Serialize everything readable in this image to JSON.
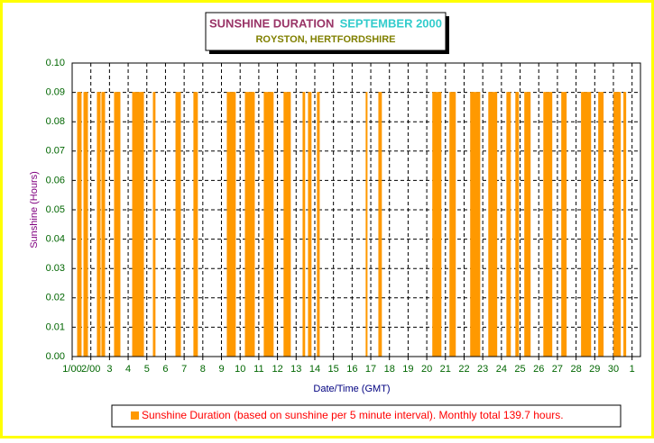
{
  "chart_data": {
    "type": "area",
    "title": "SUNSHINE DURATION",
    "title_date": "SEPTEMBER 2000",
    "subtitle": "ROYSTON, HERTFORDSHIRE",
    "y_label": "Sunshine (Hours)",
    "x_label": "Date/Time (GMT)",
    "xlim": [
      1,
      31.45
    ],
    "ylim": [
      0,
      0.1
    ],
    "xticks": [
      {
        "value": 1,
        "label": "1/00"
      },
      {
        "value": 2,
        "label": "2/00"
      },
      3,
      4,
      5,
      6,
      7,
      8,
      9,
      10,
      11,
      12,
      13,
      14,
      15,
      16,
      17,
      18,
      19,
      20,
      21,
      22,
      23,
      24,
      25,
      26,
      27,
      28,
      29,
      30,
      {
        "value": 31,
        "label": "1"
      }
    ],
    "yticks": [
      {
        "value": 0,
        "label": "0.00"
      },
      {
        "value": 0.01,
        "label": "0.01"
      },
      {
        "value": 0.02,
        "label": "0.02"
      },
      {
        "value": 0.03,
        "label": "0.03"
      },
      {
        "value": 0.04,
        "label": "0.04"
      },
      {
        "value": 0.05,
        "label": "0.05"
      },
      {
        "value": 0.06,
        "label": "0.06"
      },
      {
        "value": 0.07,
        "label": "0.07"
      },
      {
        "value": 0.08,
        "label": "0.08"
      },
      {
        "value": 0.09,
        "label": "0.09"
      },
      {
        "value": 0.1,
        "label": "0.10"
      }
    ],
    "grid": true,
    "series": [
      {
        "name": "Sunshine Duration (based on sunshine per 5 minute interval). Monthly total 139.7 hours.",
        "color": "#ff9900",
        "x": [
          1.29,
          1.29,
          1.48,
          1.48,
          1.63,
          1.63,
          1.82,
          1.82,
          2.35,
          2.35,
          2.5,
          2.5,
          2.59,
          2.59,
          2.74,
          2.74,
          3.27,
          3.27,
          3.56,
          3.56,
          4.24,
          4.24,
          4.82,
          4.82,
          5.35,
          5.35,
          5.44,
          5.44,
          6.56,
          6.56,
          6.8,
          6.8,
          7.52,
          7.52,
          7.71,
          7.71,
          9.31,
          9.31,
          9.74,
          9.74,
          10.28,
          10.28,
          10.76,
          10.76,
          11.29,
          11.29,
          11.77,
          11.77,
          12.35,
          12.35,
          12.69,
          12.69,
          13.37,
          13.37,
          13.46,
          13.46,
          13.66,
          13.66,
          13.8,
          13.8,
          14.14,
          14.14,
          14.24,
          14.24,
          16.75,
          16.75,
          16.8,
          16.8,
          17.43,
          17.43,
          17.57,
          17.57,
          20.32,
          20.32,
          20.76,
          20.76,
          21.24,
          21.24,
          21.53,
          21.53,
          22.35,
          22.35,
          22.84,
          22.84,
          23.32,
          23.32,
          23.75,
          23.75,
          24.29,
          24.29,
          24.48,
          24.48,
          24.77,
          24.77,
          24.91,
          24.91,
          25.25,
          25.25,
          25.54,
          25.54,
          26.27,
          26.27,
          26.7,
          26.7,
          27.23,
          27.23,
          27.47,
          27.47,
          28.29,
          28.29,
          28.78,
          28.78,
          29.21,
          29.21,
          29.45,
          29.45,
          30.03,
          30.03,
          30.37,
          30.37,
          30.56,
          30.56,
          30.66,
          30.66
        ],
        "values": [
          0,
          0.09,
          0.09,
          0,
          0,
          0.09,
          0.09,
          0,
          0,
          0.09,
          0.09,
          0,
          0,
          0.09,
          0.09,
          0,
          0,
          0.09,
          0.09,
          0,
          0,
          0.09,
          0.09,
          0,
          0,
          0.09,
          0.09,
          0,
          0,
          0.09,
          0.09,
          0,
          0,
          0.09,
          0.09,
          0,
          0,
          0.09,
          0.09,
          0,
          0,
          0.09,
          0.09,
          0,
          0,
          0.09,
          0.09,
          0,
          0,
          0.09,
          0.09,
          0,
          0,
          0.09,
          0.09,
          0,
          0,
          0.09,
          0.09,
          0,
          0,
          0.09,
          0.09,
          0,
          0,
          0.09,
          0.09,
          0,
          0,
          0.09,
          0.09,
          0,
          0,
          0.09,
          0.09,
          0,
          0,
          0.09,
          0.09,
          0,
          0,
          0.09,
          0.09,
          0,
          0,
          0.09,
          0.09,
          0,
          0,
          0.09,
          0.09,
          0,
          0,
          0.09,
          0.09,
          0,
          0,
          0.09,
          0.09,
          0,
          0,
          0.09,
          0.09,
          0,
          0,
          0.09,
          0.09,
          0,
          0,
          0.09,
          0.09,
          0,
          0,
          0.09,
          0.09,
          0,
          0,
          0.09,
          0.09,
          0,
          0,
          0.09,
          0.09,
          0
        ]
      }
    ]
  }
}
